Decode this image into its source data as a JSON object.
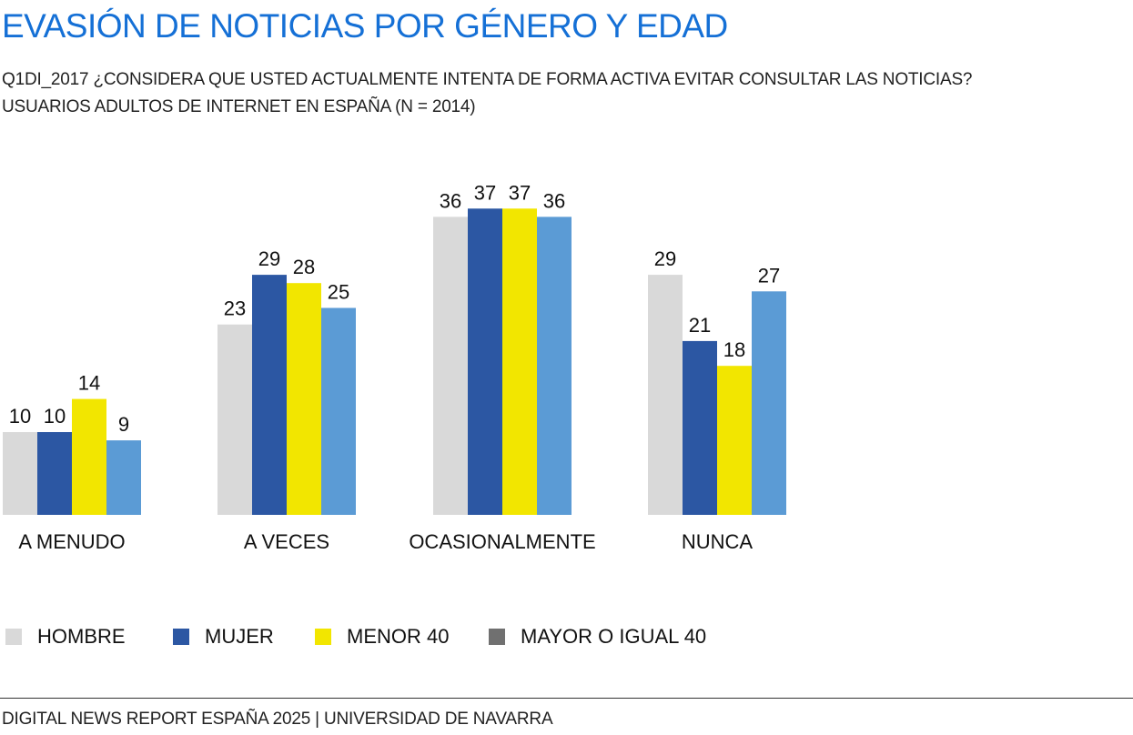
{
  "title": "EVASIÓN DE NOTICIAS POR GÉNERO Y EDAD",
  "subtitle_line1": "Q1DI_2017 ¿CONSIDERA QUE USTED ACTUALMENTE INTENTA DE FORMA ACTIVA EVITAR CONSULTAR LAS NOTICIAS?",
  "subtitle_line2": "USUARIOS ADULTOS DE INTERNET EN ESPAÑA (N = 2014)",
  "footer": "DIGITAL NEWS REPORT ESPAÑA 2025 | UNIVERSIDAD DE NAVARRA",
  "colors": {
    "title": "#1570d6",
    "hombre": "#d9d9d9",
    "mujer": "#2c57a3",
    "menor_40": "#f2e600",
    "mayor_40_bars": "#5b9bd5",
    "mayor_40_legend": "#707070"
  },
  "legend": [
    {
      "label": "HOMBRE",
      "color": "#d9d9d9"
    },
    {
      "label": "MUJER",
      "color": "#2c57a3"
    },
    {
      "label": "MENOR 40",
      "color": "#f2e600"
    },
    {
      "label": "MAYOR O IGUAL 40",
      "color": "#707070"
    }
  ],
  "chart_data": {
    "type": "bar",
    "categories": [
      "A MENUDO",
      "A VECES",
      "OCASIONALMENTE",
      "NUNCA"
    ],
    "series": [
      {
        "name": "HOMBRE",
        "values": [
          10,
          23,
          36,
          29
        ],
        "color": "#d9d9d9"
      },
      {
        "name": "MUJER",
        "values": [
          10,
          29,
          37,
          21
        ],
        "color": "#2c57a3"
      },
      {
        "name": "MENOR 40",
        "values": [
          14,
          28,
          37,
          18
        ],
        "color": "#f2e600"
      },
      {
        "name": "MAYOR O IGUAL 40",
        "values": [
          9,
          25,
          36,
          27
        ],
        "color": "#5b9bd5"
      }
    ],
    "data_labels": true,
    "grid": false,
    "legend_position": "bottom-left",
    "ylim": [
      0,
      40
    ]
  }
}
